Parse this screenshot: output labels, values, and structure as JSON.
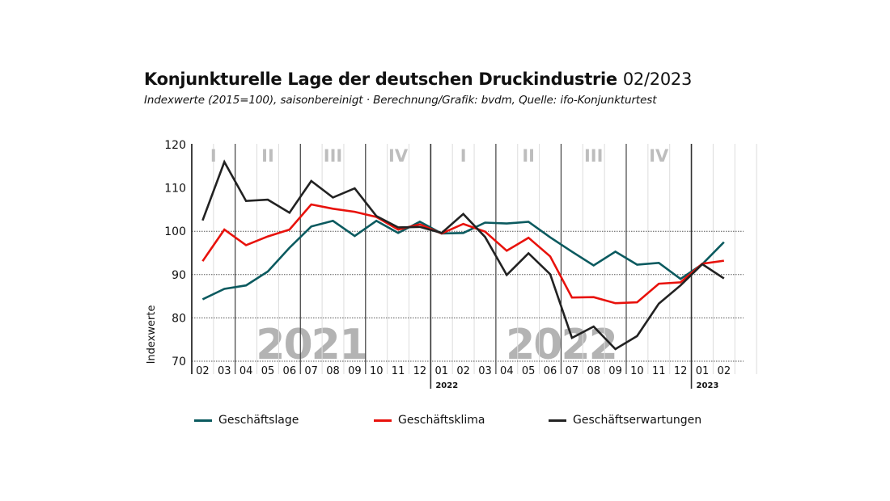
{
  "header": {
    "title": "Konjunkturelle Lage der deutschen Druckindustrie",
    "title_date": "02/2023",
    "subtitle": "Indexwerte (2015=100), saisonbereinigt · Berechnung/Grafik: bvdm, Quelle: ifo-Konjunkturtest"
  },
  "chart_data": {
    "type": "line",
    "title": "Konjunkturelle Lage der deutschen Druckindustrie 02/2023",
    "subtitle": "Indexwerte (2015=100), saisonbereinigt · Berechnung/Grafik: bvdm, Quelle: ifo-Konjunkturtest",
    "xlabel": "",
    "ylabel": "Indexwerte",
    "ylim": [
      70,
      120
    ],
    "yticks": [
      70,
      80,
      90,
      100,
      110,
      120
    ],
    "gridlines_y": [
      70,
      80,
      90,
      100
    ],
    "x": [
      "02",
      "03",
      "04",
      "05",
      "06",
      "07",
      "08",
      "09",
      "10",
      "11",
      "12",
      "01",
      "02",
      "03",
      "04",
      "05",
      "06",
      "07",
      "08",
      "09",
      "10",
      "11",
      "12",
      "01",
      "02"
    ],
    "year_markers": [
      {
        "label": "2022",
        "index": 11
      },
      {
        "label": "2023",
        "index": 23
      }
    ],
    "year_watermarks": [
      {
        "label": "2021",
        "start": 0,
        "end": 10
      },
      {
        "label": "2022",
        "start": 11,
        "end": 22
      }
    ],
    "quarters": [
      {
        "label": "I",
        "start": 0,
        "end": 1
      },
      {
        "label": "II",
        "start": 2,
        "end": 4
      },
      {
        "label": "III",
        "start": 5,
        "end": 7
      },
      {
        "label": "IV",
        "start": 8,
        "end": 10
      },
      {
        "label": "I",
        "start": 11,
        "end": 13
      },
      {
        "label": "II",
        "start": 14,
        "end": 16
      },
      {
        "label": "III",
        "start": 17,
        "end": 19
      },
      {
        "label": "IV",
        "start": 20,
        "end": 22
      }
    ],
    "series": [
      {
        "name": "Geschäftslage",
        "color": "#0b5a5f",
        "values": [
          84.3,
          86.7,
          87.5,
          90.7,
          96.2,
          101.1,
          102.4,
          98.9,
          102.4,
          99.6,
          102.2,
          99.5,
          99.6,
          102.0,
          101.8,
          102.2,
          98.6,
          95.3,
          92.1,
          95.3,
          92.3,
          92.7,
          89.0,
          92.4,
          97.5
        ]
      },
      {
        "name": "Geschäftsklima",
        "color": "#e8120c",
        "values": [
          93.1,
          100.4,
          96.8,
          98.8,
          100.4,
          106.2,
          105.2,
          104.5,
          103.3,
          100.4,
          101.6,
          99.5,
          101.7,
          99.9,
          95.5,
          98.5,
          94.2,
          84.7,
          84.8,
          83.4,
          83.6,
          87.9,
          88.2,
          92.5,
          93.2
        ]
      },
      {
        "name": "Geschäftserwartungen",
        "color": "#222222",
        "values": [
          102.5,
          116.0,
          107.0,
          107.3,
          104.3,
          111.6,
          107.8,
          109.9,
          103.5,
          100.9,
          101.0,
          99.6,
          104.0,
          98.7,
          89.9,
          94.9,
          90.1,
          75.4,
          78.0,
          72.8,
          75.8,
          83.3,
          87.5,
          92.4,
          89.1
        ]
      }
    ],
    "legend_position": "bottom",
    "grid": true
  },
  "colors": {
    "quarter_label": "#bdbdbd",
    "watermark": "#9a9a9a",
    "gridline": "#555555",
    "minor_vline": "#dddddd",
    "major_vline": "#333333"
  }
}
